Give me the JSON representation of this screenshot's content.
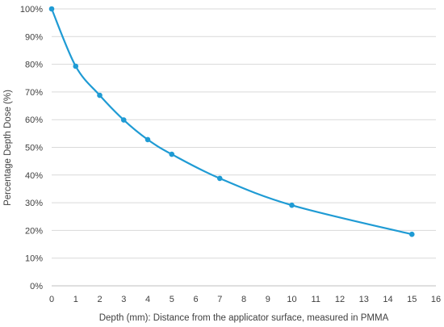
{
  "chart_data": {
    "type": "line",
    "title": "",
    "xlabel": "Depth (mm): Distance from the applicator surface, measured in PMMA",
    "ylabel": "Percentage Depth Dose (%)",
    "xlim": [
      0,
      16
    ],
    "ylim": [
      0,
      100
    ],
    "x_ticks": [
      0,
      1,
      2,
      3,
      4,
      5,
      6,
      7,
      8,
      9,
      10,
      11,
      12,
      13,
      14,
      15,
      16
    ],
    "y_ticks": [
      0,
      10,
      20,
      30,
      40,
      50,
      60,
      70,
      80,
      90,
      100
    ],
    "y_tick_labels": [
      "0%",
      "10%",
      "20%",
      "30%",
      "40%",
      "50%",
      "60%",
      "70%",
      "80%",
      "90%",
      "100%"
    ],
    "grid": true,
    "legend": "none",
    "smooth": true,
    "series": [
      {
        "color": "#1f9bd4",
        "x": [
          0,
          1,
          2,
          3,
          4,
          5,
          7,
          10,
          15
        ],
        "y": [
          100,
          79.3,
          68.8,
          59.9,
          52.8,
          47.5,
          38.8,
          29.1,
          18.6
        ]
      }
    ]
  }
}
